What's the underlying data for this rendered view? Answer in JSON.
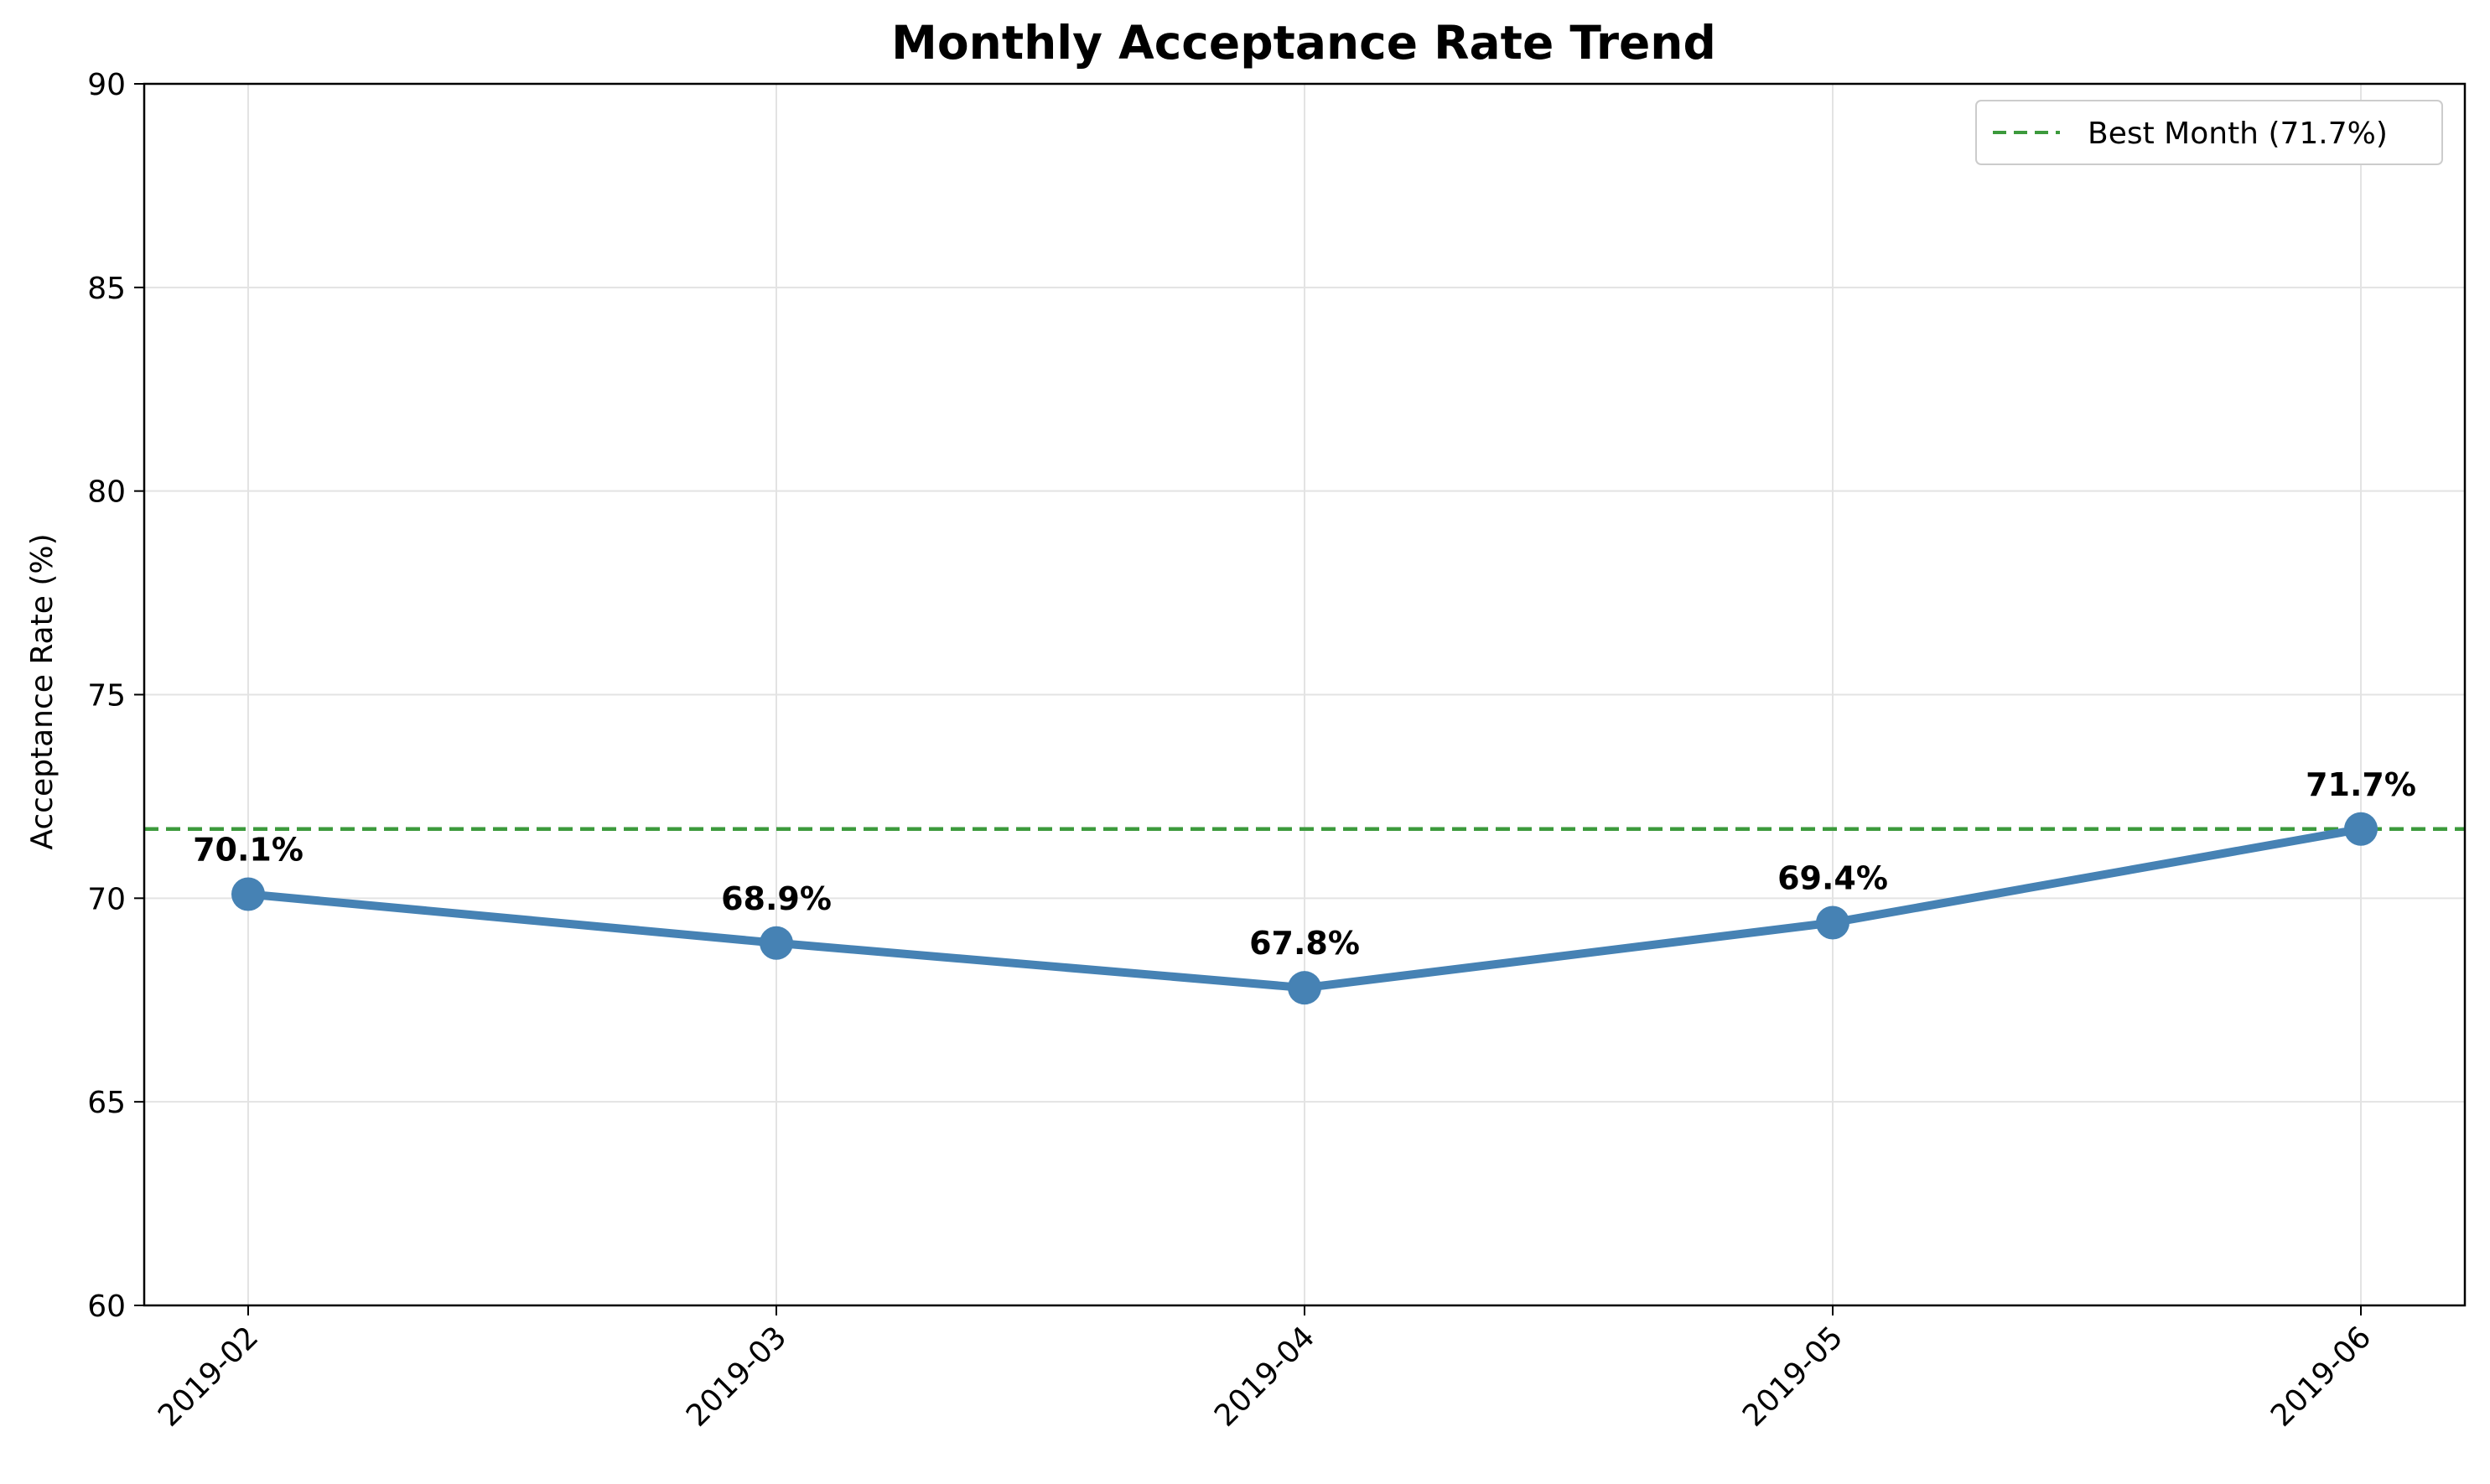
{
  "chart_data": {
    "type": "line",
    "title": "Monthly Acceptance Rate Trend",
    "xlabel": "",
    "ylabel": "Acceptance Rate (%)",
    "categories": [
      "2019-02",
      "2019-03",
      "2019-04",
      "2019-05",
      "2019-06"
    ],
    "series": [
      {
        "values": [
          70.1,
          68.9,
          67.8,
          69.4,
          71.7
        ],
        "color": "#4682b4",
        "data_labels": [
          "70.1%",
          "68.9%",
          "67.8%",
          "69.4%",
          "71.7%"
        ]
      }
    ],
    "reference_line": {
      "name": "Best Month (71.7%)",
      "value": 71.7,
      "color": "#3c9a3c",
      "style": "dashed"
    },
    "ylim": [
      60,
      90
    ],
    "yticks": [
      60,
      65,
      70,
      75,
      80,
      85,
      90
    ],
    "grid": true,
    "legend_position": "top-right"
  }
}
